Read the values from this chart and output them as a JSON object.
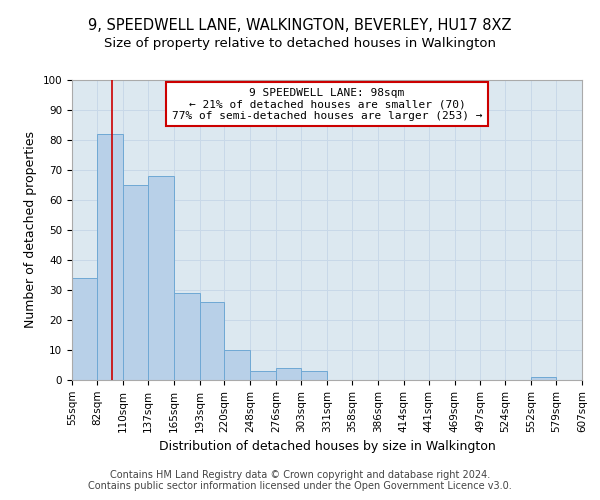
{
  "title": "9, SPEEDWELL LANE, WALKINGTON, BEVERLEY, HU17 8XZ",
  "subtitle": "Size of property relative to detached houses in Walkington",
  "xlabel": "Distribution of detached houses by size in Walkington",
  "ylabel": "Number of detached properties",
  "bins": [
    55,
    82,
    110,
    137,
    165,
    193,
    220,
    248,
    276,
    303,
    331,
    358,
    386,
    414,
    441,
    469,
    497,
    524,
    552,
    579,
    607
  ],
  "bar_heights": [
    34,
    82,
    65,
    68,
    29,
    26,
    10,
    3,
    4,
    3,
    0,
    0,
    0,
    0,
    0,
    0,
    0,
    0,
    1,
    0
  ],
  "bar_color": "#b8d0e8",
  "bar_edge_color": "#6fa8d4",
  "property_size": 98,
  "vline_color": "#cc0000",
  "annotation_line1": "9 SPEEDWELL LANE: 98sqm",
  "annotation_line2": "← 21% of detached houses are smaller (70)",
  "annotation_line3": "77% of semi-detached houses are larger (253) →",
  "annotation_box_color": "#ffffff",
  "annotation_box_edge": "#cc0000",
  "ylim": [
    0,
    100
  ],
  "yticks": [
    0,
    10,
    20,
    30,
    40,
    50,
    60,
    70,
    80,
    90,
    100
  ],
  "grid_color": "#c8d8e8",
  "bg_color": "#dce8f0",
  "footer1": "Contains HM Land Registry data © Crown copyright and database right 2024.",
  "footer2": "Contains public sector information licensed under the Open Government Licence v3.0.",
  "title_fontsize": 10.5,
  "subtitle_fontsize": 9.5,
  "axis_label_fontsize": 9,
  "tick_fontsize": 7.5,
  "annotation_fontsize": 8,
  "footer_fontsize": 7
}
